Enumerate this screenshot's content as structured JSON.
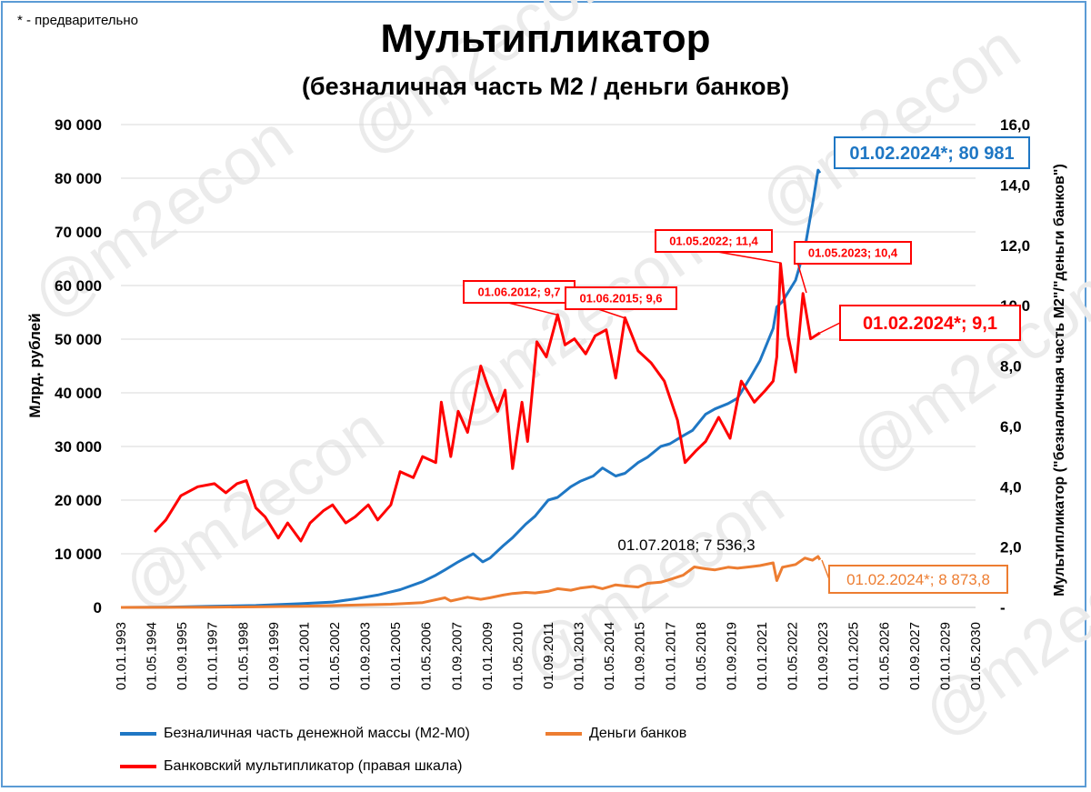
{
  "note": "* - предварительно",
  "watermark": "@m2econ",
  "chart_data": {
    "type": "line",
    "title": "Мультипликатор",
    "subtitle": "(безналичная часть M2 / деньги банков)",
    "ylabel_left": "Млрд. рублей",
    "ylabel_right": "Мультипликатор (\"безналичная часть M2\"/\"деньги банков\")",
    "ylim_left": [
      0,
      90000
    ],
    "ylim_right": [
      0,
      16
    ],
    "yticks_left": [
      "0",
      "10 000",
      "20 000",
      "30 000",
      "40 000",
      "50 000",
      "60 000",
      "70 000",
      "80 000",
      "90 000"
    ],
    "yticks_right": [
      "-",
      "2,0",
      "4,0",
      "6,0",
      "8,0",
      "10,0",
      "12,0",
      "14,0",
      "16,0"
    ],
    "xlim": [
      "1993-01-01",
      "2031-01-01"
    ],
    "xticks": [
      "01.01.1993",
      "01.05.1994",
      "01.09.1995",
      "01.01.1997",
      "01.05.1998",
      "01.09.1999",
      "01.01.2001",
      "01.05.2002",
      "01.09.2003",
      "01.01.2005",
      "01.05.2006",
      "01.09.2007",
      "01.01.2009",
      "01.05.2010",
      "01.09.2011",
      "01.01.2013",
      "01.05.2014",
      "01.09.2015",
      "01.01.2017",
      "01.05.2018",
      "01.09.2019",
      "01.01.2021",
      "01.05.2022",
      "01.09.2023",
      "01.01.2025",
      "01.05.2026",
      "01.09.2027",
      "01.01.2029",
      "01.05.2030"
    ],
    "grid": "horizontal",
    "legend_position": "bottom",
    "series": [
      {
        "name": "Безналичная часть денежной массы (M2-M0)",
        "color": "#1f77c4",
        "axis": "left",
        "x": [
          "1993-01-01",
          "1995-01-01",
          "1997-01-01",
          "1999-01-01",
          "2001-01-01",
          "2002-06-01",
          "2003-06-01",
          "2004-06-01",
          "2005-06-01",
          "2006-06-01",
          "2007-01-01",
          "2007-06-01",
          "2008-01-01",
          "2008-09-01",
          "2009-02-01",
          "2009-06-01",
          "2010-01-01",
          "2010-06-01",
          "2011-01-01",
          "2011-06-01",
          "2012-01-01",
          "2012-06-01",
          "2013-01-01",
          "2013-06-01",
          "2014-01-01",
          "2014-06-01",
          "2015-01-01",
          "2015-06-01",
          "2016-01-01",
          "2016-06-01",
          "2017-01-01",
          "2017-06-01",
          "2018-01-01",
          "2018-06-01",
          "2019-01-01",
          "2019-06-01",
          "2020-01-01",
          "2020-06-01",
          "2021-01-01",
          "2021-06-01",
          "2022-01-01",
          "2022-03-01",
          "2022-06-01",
          "2023-01-01",
          "2023-06-01",
          "2023-10-01",
          "2024-01-01",
          "2024-02-01"
        ],
        "y": [
          0,
          50,
          200,
          350,
          700,
          1000,
          1600,
          2300,
          3300,
          4800,
          6000,
          7000,
          8500,
          10000,
          8500,
          9200,
          11500,
          13000,
          15500,
          17000,
          20000,
          20500,
          22500,
          23500,
          24500,
          26000,
          24500,
          25000,
          27000,
          28000,
          30000,
          30500,
          32000,
          33000,
          36000,
          37000,
          38000,
          39000,
          43000,
          46000,
          52000,
          56000,
          57000,
          61000,
          67000,
          75000,
          81500,
          80981
        ]
      },
      {
        "name": "Деньги банков",
        "color": "#ed7d31",
        "axis": "left",
        "x": [
          "1993-01-01",
          "1995-01-01",
          "1997-01-01",
          "1999-01-01",
          "2001-01-01",
          "2003-01-01",
          "2005-01-01",
          "2006-06-01",
          "2007-06-01",
          "2007-09-01",
          "2008-06-01",
          "2009-01-01",
          "2009-06-01",
          "2010-01-01",
          "2010-06-01",
          "2011-01-01",
          "2011-06-01",
          "2012-01-01",
          "2012-06-01",
          "2013-01-01",
          "2013-06-01",
          "2014-01-01",
          "2014-06-01",
          "2015-01-01",
          "2015-06-01",
          "2016-01-01",
          "2016-06-01",
          "2017-01-01",
          "2017-06-01",
          "2018-01-01",
          "2018-07-01",
          "2019-01-01",
          "2019-06-01",
          "2020-01-01",
          "2020-06-01",
          "2021-01-01",
          "2021-06-01",
          "2022-01-01",
          "2022-03-01",
          "2022-06-01",
          "2023-01-01",
          "2023-06-01",
          "2023-10-01",
          "2024-01-01",
          "2024-02-01"
        ],
        "y": [
          0,
          20,
          50,
          100,
          200,
          400,
          600,
          900,
          1800,
          1200,
          1900,
          1500,
          1800,
          2300,
          2600,
          2800,
          2700,
          3000,
          3500,
          3200,
          3600,
          3900,
          3500,
          4200,
          4000,
          3800,
          4500,
          4700,
          5200,
          6000,
          7536.3,
          7200,
          7000,
          7500,
          7300,
          7600,
          7800,
          8300,
          5000,
          7500,
          8000,
          9200,
          8800,
          9500,
          8873.8
        ]
      },
      {
        "name": "Банковский мультипликатор (правая шкала)",
        "color": "#ff0000",
        "axis": "right",
        "x": [
          "1994-07-01",
          "1995-01-01",
          "1995-09-01",
          "1996-06-01",
          "1997-03-01",
          "1997-09-01",
          "1998-03-01",
          "1998-08-01",
          "1999-01-01",
          "1999-06-01",
          "2000-01-01",
          "2000-06-01",
          "2001-01-01",
          "2001-06-01",
          "2002-01-01",
          "2002-06-01",
          "2003-01-01",
          "2003-06-01",
          "2004-01-01",
          "2004-06-01",
          "2005-01-01",
          "2005-06-01",
          "2006-01-01",
          "2006-06-01",
          "2007-01-01",
          "2007-04-01",
          "2007-09-01",
          "2008-01-01",
          "2008-06-01",
          "2009-01-01",
          "2009-05-01",
          "2009-10-01",
          "2010-02-01",
          "2010-06-01",
          "2010-11-01",
          "2011-02-01",
          "2011-07-01",
          "2011-12-01",
          "2012-06-01",
          "2012-10-01",
          "2013-03-01",
          "2013-09-01",
          "2014-02-01",
          "2014-08-01",
          "2015-01-01",
          "2015-06-01",
          "2016-01-01",
          "2016-08-01",
          "2017-03-01",
          "2017-10-01",
          "2018-02-01",
          "2018-08-01",
          "2019-01-01",
          "2019-08-01",
          "2020-02-01",
          "2020-08-01",
          "2021-03-01",
          "2021-09-01",
          "2022-01-01",
          "2022-03-01",
          "2022-05-01",
          "2022-09-01",
          "2023-01-01",
          "2023-05-01",
          "2023-09-01",
          "2024-02-01"
        ],
        "y": [
          2.5,
          2.9,
          3.7,
          4.0,
          4.1,
          3.8,
          4.1,
          4.2,
          3.3,
          3.0,
          2.3,
          2.8,
          2.2,
          2.8,
          3.2,
          3.4,
          2.8,
          3.0,
          3.4,
          2.9,
          3.4,
          4.5,
          4.3,
          5.0,
          4.8,
          6.8,
          5.0,
          6.5,
          5.8,
          8.0,
          7.3,
          6.5,
          7.2,
          4.6,
          6.8,
          5.5,
          8.8,
          8.3,
          9.7,
          8.7,
          8.9,
          8.4,
          9.0,
          9.2,
          7.6,
          9.6,
          8.5,
          8.1,
          7.5,
          6.2,
          4.8,
          5.2,
          5.5,
          6.3,
          5.6,
          7.5,
          6.8,
          7.2,
          7.5,
          8.3,
          11.4,
          9.0,
          7.8,
          10.4,
          8.9,
          9.1
        ]
      }
    ],
    "annotations": [
      {
        "text": "01.02.2024*; 80 981",
        "series": 0,
        "style": "boxed"
      },
      {
        "text": "01.05.2022;  11,4",
        "series": 2,
        "style": "boxed"
      },
      {
        "text": "01.05.2023;  10,4",
        "series": 2,
        "style": "boxed"
      },
      {
        "text": "01.06.2012;  9,7",
        "series": 2,
        "style": "boxed"
      },
      {
        "text": "01.06.2015;  9,6",
        "series": 2,
        "style": "boxed"
      },
      {
        "text": "01.02.2024*;   9,1",
        "series": 2,
        "style": "boxed"
      },
      {
        "text": "01.07.2018;  7 536,3",
        "series": 1,
        "style": "plain"
      },
      {
        "text": "01.02.2024*;  8 873,8",
        "series": 1,
        "style": "boxed"
      }
    ]
  }
}
